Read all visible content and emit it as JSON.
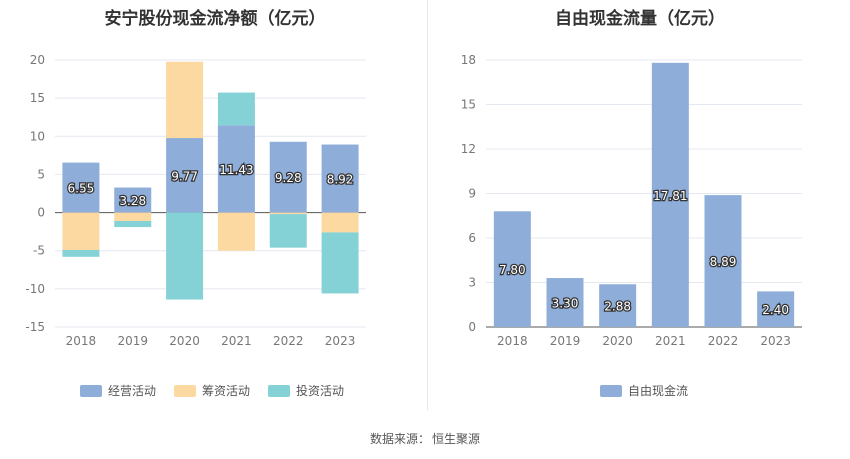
{
  "source": {
    "label": "数据来源：",
    "name": "恒生聚源"
  },
  "colors": {
    "operating": "#8eadd9",
    "financing": "#fcd9a0",
    "investing": "#85d2d6",
    "free": "#8eadd9",
    "grid": "#e4e8f0",
    "zero": "#555555"
  },
  "chart_data": [
    {
      "type": "bar",
      "stacked": true,
      "title": "安宁股份现金流净额（亿元）",
      "categories": [
        "2018",
        "2019",
        "2020",
        "2021",
        "2022",
        "2023"
      ],
      "ylim": [
        -15,
        20
      ],
      "yticks": [
        20,
        15,
        10,
        5,
        0,
        -5,
        -10,
        -15
      ],
      "legend_position": "bottom",
      "series": [
        {
          "name": "经营活动",
          "values": [
            6.55,
            3.28,
            9.77,
            11.43,
            9.28,
            8.92
          ],
          "labels": [
            "6.55",
            "3.28",
            "9.77",
            "11.43",
            "9.28",
            "8.92"
          ]
        },
        {
          "name": "筹资活动",
          "values": [
            -4.9,
            -1.1,
            10.0,
            -5.0,
            -0.2,
            -2.6
          ]
        },
        {
          "name": "投资活动",
          "values": [
            -0.9,
            -0.8,
            -11.4,
            4.3,
            -4.4,
            -8.0
          ]
        }
      ]
    },
    {
      "type": "bar",
      "title": "自由现金流量（亿元）",
      "categories": [
        "2018",
        "2019",
        "2020",
        "2021",
        "2022",
        "2023"
      ],
      "ylim": [
        0,
        18
      ],
      "yticks": [
        18,
        15,
        12,
        9,
        6,
        3,
        0
      ],
      "legend_position": "bottom",
      "series": [
        {
          "name": "自由现金流",
          "values": [
            7.8,
            3.3,
            2.88,
            17.81,
            8.89,
            2.4
          ],
          "labels": [
            "7.80",
            "3.30",
            "2.88",
            "17.81",
            "8.89",
            "2.40"
          ]
        }
      ]
    }
  ]
}
